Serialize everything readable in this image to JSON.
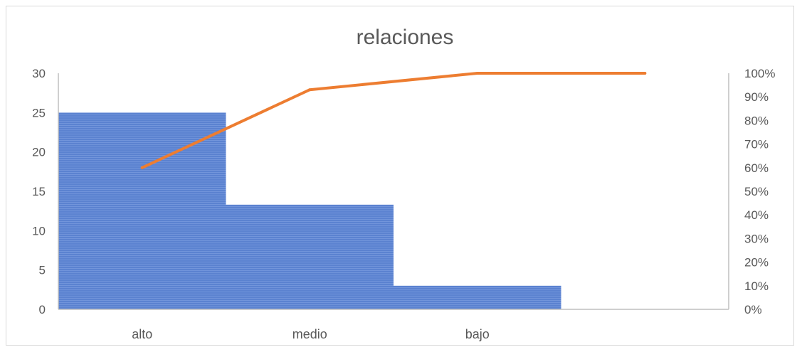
{
  "chart_data": {
    "type": "bar",
    "title": "relaciones",
    "categories": [
      "alto",
      "medio",
      "bajo",
      ""
    ],
    "series": [
      {
        "type": "bar",
        "axis": "left",
        "values": [
          25,
          13.3,
          3,
          0
        ],
        "color": "#4472c4"
      },
      {
        "type": "line",
        "axis": "right",
        "values": [
          0.6,
          0.93,
          1.0,
          1.0
        ],
        "color": "#ed7d31"
      }
    ],
    "ylim": [
      0,
      30
    ],
    "y_ticks": [
      "0",
      "5",
      "10",
      "15",
      "20",
      "25",
      "30"
    ],
    "y2lim": [
      0,
      1
    ],
    "y2_ticks": [
      "0%",
      "10%",
      "20%",
      "30%",
      "40%",
      "50%",
      "60%",
      "70%",
      "80%",
      "90%",
      "100%"
    ],
    "grid": false,
    "legend": "none"
  }
}
